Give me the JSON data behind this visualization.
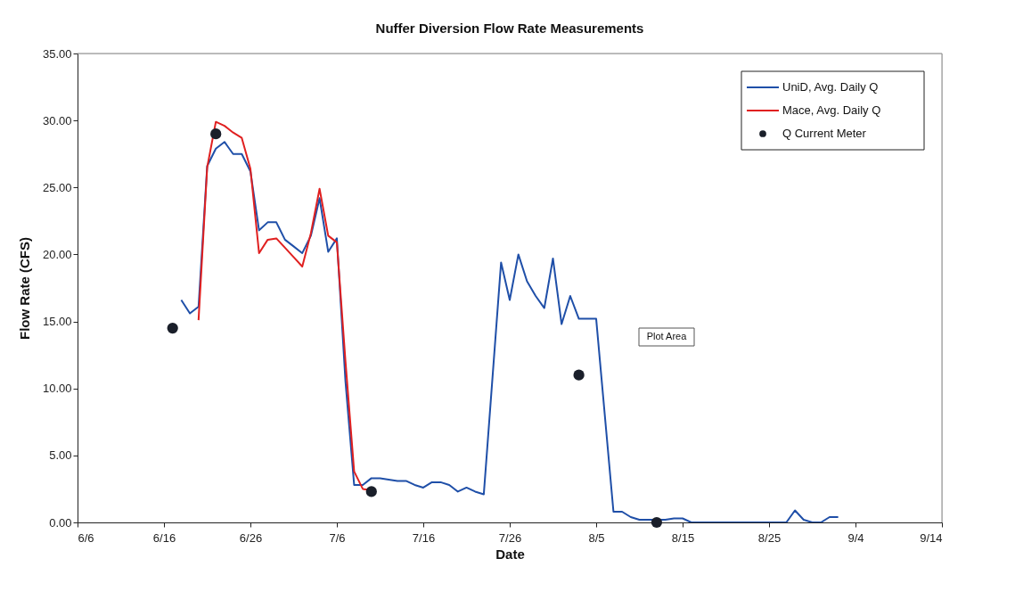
{
  "chart_data": {
    "type": "line",
    "title": "Nuffer Diversion Flow Rate Measurements",
    "xlabel": "Date",
    "ylabel": "Flow Rate (CFS)",
    "series": [
      {
        "name": "UniD, Avg. Daily Q",
        "color": "#1f4fa8",
        "x": [
          "--06-18",
          "--06-19",
          "--06-20",
          "--06-21",
          "--06-22",
          "--06-23",
          "--06-24",
          "--06-25",
          "--06-26",
          "--06-27",
          "--06-28",
          "--06-29",
          "--06-30",
          "--07-01",
          "--07-02",
          "--07-03",
          "--07-04",
          "--07-05",
          "--07-06",
          "--07-07",
          "--07-08",
          "--07-09",
          "--07-10",
          "--07-11",
          "--07-12",
          "--07-13",
          "--07-14",
          "--07-15",
          "--07-16",
          "--07-17",
          "--07-18",
          "--07-19",
          "--07-20",
          "--07-21",
          "--07-22",
          "--07-23",
          "--07-25",
          "--07-26",
          "--07-27",
          "--07-28",
          "--07-29",
          "--07-30",
          "--07-31",
          "--08-01",
          "--08-02",
          "--08-03",
          "--08-04",
          "--08-05",
          "--08-07",
          "--08-08",
          "--08-09",
          "--08-10",
          "--08-11",
          "--08-12",
          "--08-13",
          "--08-14",
          "--08-15",
          "--08-16",
          "--08-20",
          "--08-24",
          "--08-27",
          "--08-28",
          "--08-29",
          "--08-30",
          "--08-31",
          "--09-01",
          "--09-02"
        ],
        "values": [
          16.6,
          15.6,
          16.1,
          26.6,
          27.9,
          28.4,
          27.5,
          27.5,
          26.2,
          21.8,
          22.4,
          22.4,
          21.1,
          20.6,
          20.1,
          21.4,
          24.2,
          20.2,
          21.2,
          10.5,
          2.8,
          2.8,
          3.3,
          3.3,
          3.2,
          3.1,
          3.1,
          2.8,
          2.6,
          3.0,
          3.0,
          2.8,
          2.3,
          2.6,
          2.3,
          2.1,
          19.4,
          16.6,
          20.0,
          18.0,
          16.9,
          16.0,
          19.7,
          14.8,
          16.9,
          15.2,
          15.2,
          15.2,
          0.8,
          0.8,
          0.4,
          0.2,
          0.2,
          0.2,
          0.2,
          0.3,
          0.3,
          0.0,
          0.0,
          0.0,
          0.0,
          0.9,
          0.2,
          0.0,
          0.0,
          0.4,
          0.4
        ]
      },
      {
        "name": "Mace, Avg. Daily Q",
        "color": "#e02020",
        "x": [
          "--06-20",
          "--06-21",
          "--06-22",
          "--06-23",
          "--06-24",
          "--06-25",
          "--06-26",
          "--06-27",
          "--06-28",
          "--06-29",
          "--06-30",
          "--07-01",
          "--07-02",
          "--07-03",
          "--07-04",
          "--07-05",
          "--07-06",
          "--07-07",
          "--07-08",
          "--07-09",
          "--07-10"
        ],
        "values": [
          15.1,
          26.5,
          29.9,
          29.6,
          29.1,
          28.7,
          26.4,
          20.1,
          21.1,
          21.2,
          20.5,
          19.8,
          19.1,
          21.6,
          24.9,
          21.4,
          20.9,
          12.0,
          3.8,
          2.5,
          2.4
        ]
      },
      {
        "name": "Q Current Meter",
        "color": "#1a1f2a",
        "type": "scatter",
        "marker": "circle",
        "x": [
          "--06-17",
          "--06-22",
          "--07-10",
          "--08-03",
          "--08-12"
        ],
        "values": [
          14.5,
          29.0,
          2.3,
          11.0,
          0.0
        ]
      }
    ],
    "xlim": [
      "--06-06",
      "--09-14"
    ],
    "xticks": [
      {
        "value": "--06-06",
        "label": "6/6"
      },
      {
        "value": "--06-16",
        "label": "6/16"
      },
      {
        "value": "--06-26",
        "label": "6/26"
      },
      {
        "value": "--07-06",
        "label": "7/6"
      },
      {
        "value": "--07-16",
        "label": "7/16"
      },
      {
        "value": "--07-26",
        "label": "7/26"
      },
      {
        "value": "--08-05",
        "label": "8/5"
      },
      {
        "value": "--08-15",
        "label": "8/15"
      },
      {
        "value": "--08-25",
        "label": "8/25"
      },
      {
        "value": "--09-04",
        "label": "9/4"
      },
      {
        "value": "--09-14",
        "label": "9/14"
      }
    ],
    "ylim": [
      0,
      35
    ],
    "yticks": [
      {
        "value": 0,
        "label": "0.00"
      },
      {
        "value": 5,
        "label": "5.00"
      },
      {
        "value": 10,
        "label": "10.00"
      },
      {
        "value": 15,
        "label": "15.00"
      },
      {
        "value": 20,
        "label": "20.00"
      },
      {
        "value": 25,
        "label": "25.00"
      },
      {
        "value": 30,
        "label": "30.00"
      },
      {
        "value": 35,
        "label": "35.00"
      }
    ],
    "annotations": [
      "Plot Area"
    ],
    "grid": false,
    "legend": "top right",
    "line_style": "solid"
  }
}
